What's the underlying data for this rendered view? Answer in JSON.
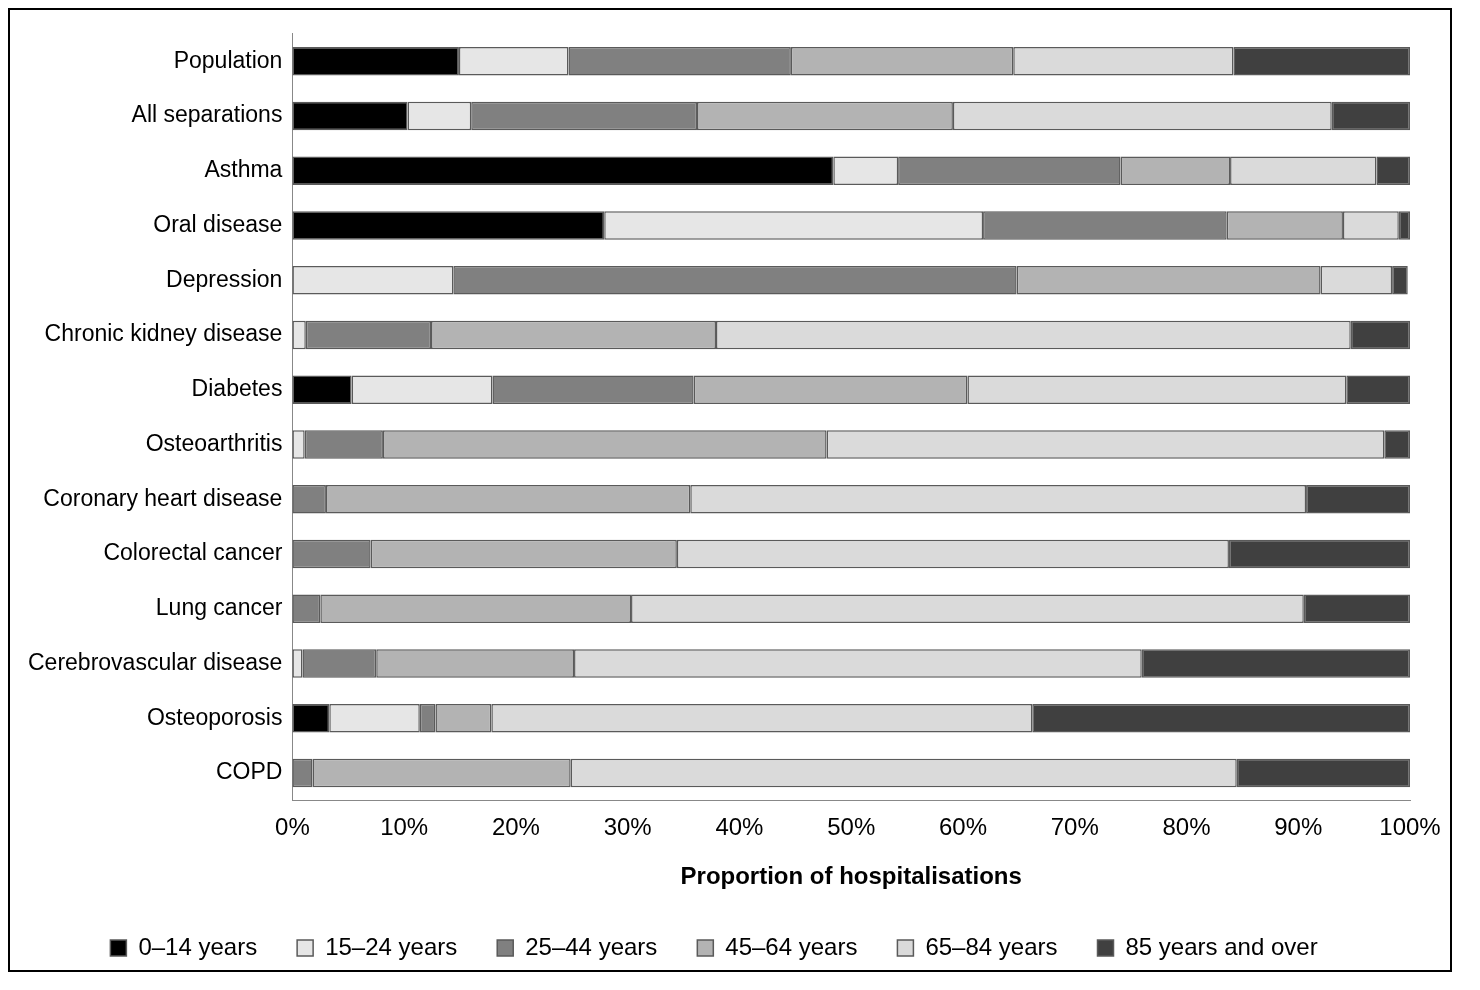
{
  "chart_data": {
    "type": "bar",
    "orientation": "horizontal",
    "stacked": true,
    "xlabel": "Proportion of hospitalisations",
    "categories": [
      "Population",
      "All separations",
      "Asthma",
      "Oral disease",
      "Depression",
      "Chronic kidney disease",
      "Diabetes",
      "Osteoarthritis",
      "Coronary heart disease",
      "Colorectal cancer",
      "Lung cancer",
      "Cerebrovascular disease",
      "Osteoporosis",
      "COPD"
    ],
    "series": [
      {
        "name": "0–14 years",
        "color": "#000000",
        "values": [
          14.9,
          10.3,
          48.4,
          27.9,
          0,
          0,
          5.3,
          0,
          0,
          0,
          0,
          0,
          3.3,
          0
        ]
      },
      {
        "name": "15–24 years",
        "color": "#e6e6e6",
        "values": [
          9.8,
          5.7,
          5.8,
          33.9,
          14.4,
          1.2,
          12.6,
          1.1,
          0,
          0,
          0,
          0.9,
          8.1,
          0
        ]
      },
      {
        "name": "25–44 years",
        "color": "#808080",
        "values": [
          19.9,
          20.2,
          19.9,
          21.8,
          50.4,
          11.2,
          18.0,
          7.0,
          3.0,
          7.0,
          2.5,
          6.6,
          1.4,
          1.8
        ]
      },
      {
        "name": "45–64 years",
        "color": "#b3b3b3",
        "values": [
          19.9,
          22.9,
          9.8,
          10.4,
          27.2,
          25.5,
          24.5,
          39.7,
          32.6,
          27.4,
          27.8,
          17.7,
          5.0,
          23.1
        ]
      },
      {
        "name": "65–84 years",
        "color": "#dadada",
        "values": [
          19.7,
          33.9,
          13.1,
          5.0,
          6.4,
          56.8,
          33.9,
          49.9,
          55.1,
          49.4,
          60.2,
          50.8,
          48.4,
          59.6
        ]
      },
      {
        "name": "85 years and over",
        "color": "#404040",
        "values": [
          15.8,
          7.0,
          3.0,
          1.0,
          1.4,
          5.3,
          5.7,
          2.3,
          9.3,
          16.2,
          9.5,
          24.0,
          33.8,
          15.5
        ]
      }
    ],
    "xlim": [
      0,
      100
    ],
    "xticks": [
      {
        "value": 0,
        "label": "0%"
      },
      {
        "value": 10,
        "label": "10%"
      },
      {
        "value": 20,
        "label": "20%"
      },
      {
        "value": 30,
        "label": "30%"
      },
      {
        "value": 40,
        "label": "40%"
      },
      {
        "value": 50,
        "label": "50%"
      },
      {
        "value": 60,
        "label": "60%"
      },
      {
        "value": 70,
        "label": "70%"
      },
      {
        "value": 80,
        "label": "80%"
      },
      {
        "value": 90,
        "label": "90%"
      },
      {
        "value": 100,
        "label": "100%"
      }
    ],
    "grid": false,
    "legend": "bottom"
  }
}
